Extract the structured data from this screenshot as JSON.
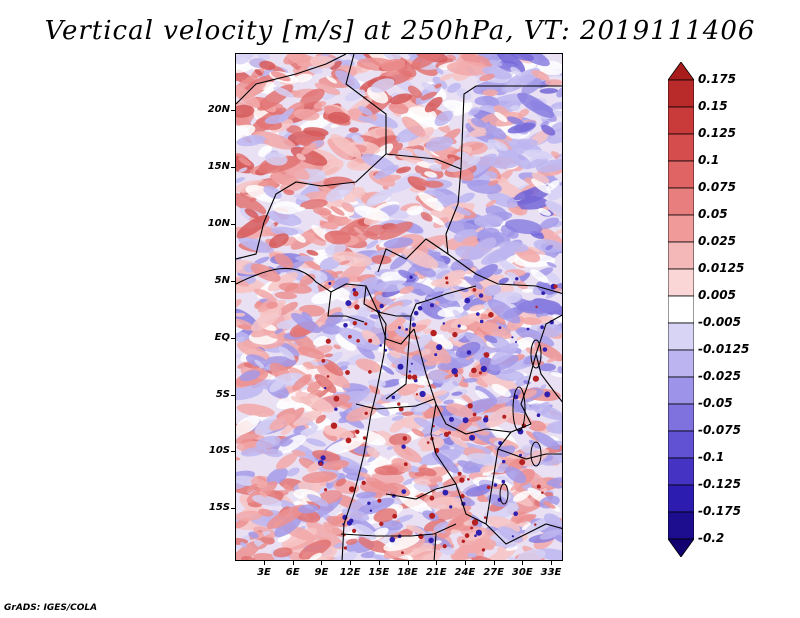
{
  "title": "Vertical velocity [m/s] at 250hPa, VT: 2019111406",
  "credit": "GrADS: IGES/COLA",
  "map": {
    "lat_ticks": [
      "20N",
      "15N",
      "10N",
      "5N",
      "EQ",
      "5S",
      "10S",
      "15S"
    ],
    "lon_ticks": [
      "3E",
      "6E",
      "9E",
      "12E",
      "15E",
      "18E",
      "21E",
      "24E",
      "27E",
      "30E",
      "33E"
    ],
    "field": "vertical velocity",
    "level": "250hPa",
    "valid_time": "2019111406"
  },
  "colorbar": {
    "labels": [
      "0.175",
      "0.15",
      "0.125",
      "0.1",
      "0.075",
      "0.05",
      "0.025",
      "0.0125",
      "0.005",
      "-0.005",
      "-0.0125",
      "-0.025",
      "-0.05",
      "-0.075",
      "-0.1",
      "-0.125",
      "-0.175",
      "-0.2"
    ],
    "colors": [
      "#a81c1c",
      "#b92a2a",
      "#c93a3a",
      "#d64d4d",
      "#e06464",
      "#e97e7e",
      "#f09a9a",
      "#f5b8b8",
      "#fad6d6",
      "#ffffff",
      "#d8d4f6",
      "#bbb4f0",
      "#9d93e8",
      "#7f72de",
      "#6052d2",
      "#4534c4",
      "#2d1cb0",
      "#1c0e8e",
      "#120070"
    ]
  }
}
